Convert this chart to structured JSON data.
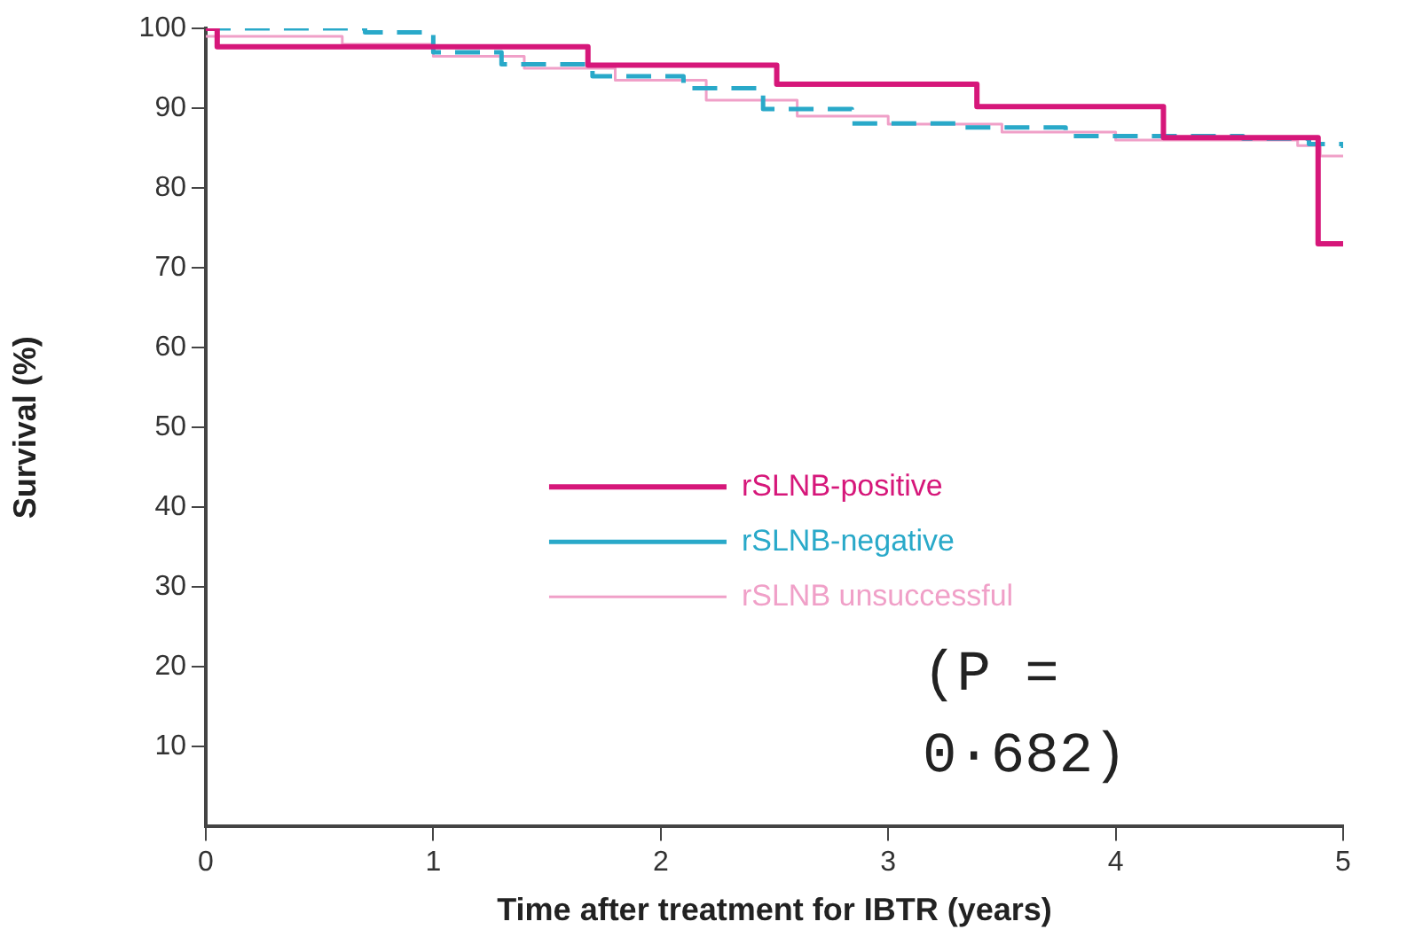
{
  "chart_data": {
    "type": "step",
    "xlabel": "Time after treatment for IBTR (years)",
    "ylabel": "Survival (%)",
    "xlim": [
      0,
      5
    ],
    "xticks": [
      0,
      1,
      2,
      3,
      4,
      5
    ],
    "ylim": [
      0,
      100
    ],
    "yticks": [
      10,
      20,
      30,
      40,
      50,
      60,
      70,
      80,
      90,
      100
    ],
    "grid": false,
    "legend": "center",
    "annotations": [
      "(P = 0·682)"
    ],
    "series": [
      {
        "name": "rSLNB-positive",
        "color": "#d6177a",
        "line_style": "solid",
        "x": [
          0,
          0.05,
          1.68,
          2.51,
          3.39,
          4.21,
          4.89,
          5
        ],
        "values": [
          100,
          97.7,
          95.4,
          93,
          90.2,
          86.3,
          73,
          73
        ]
      },
      {
        "name": "rSLNB-negative",
        "color": "#29a9c9",
        "line_style": "dashed",
        "x": [
          0,
          0.7,
          1.0,
          1.3,
          1.7,
          2.1,
          2.45,
          2.84,
          3.3,
          3.78,
          4.56,
          4.85,
          5
        ],
        "values": [
          100,
          99.5,
          97,
          95.5,
          94,
          92.5,
          89.9,
          88.1,
          87.6,
          86.5,
          86.2,
          85.5,
          85
        ]
      },
      {
        "name": "rSLNB unsuccessful",
        "color": "#f0a0c8",
        "line_style": "solid",
        "x": [
          0,
          0.6,
          1.0,
          1.4,
          1.8,
          2.2,
          2.6,
          3.0,
          3.5,
          4.0,
          4.5,
          4.8,
          4.9,
          5
        ],
        "values": [
          99,
          98,
          96.5,
          95,
          93.5,
          91,
          89,
          88,
          87,
          86,
          86,
          85.3,
          84,
          84
        ]
      }
    ]
  }
}
